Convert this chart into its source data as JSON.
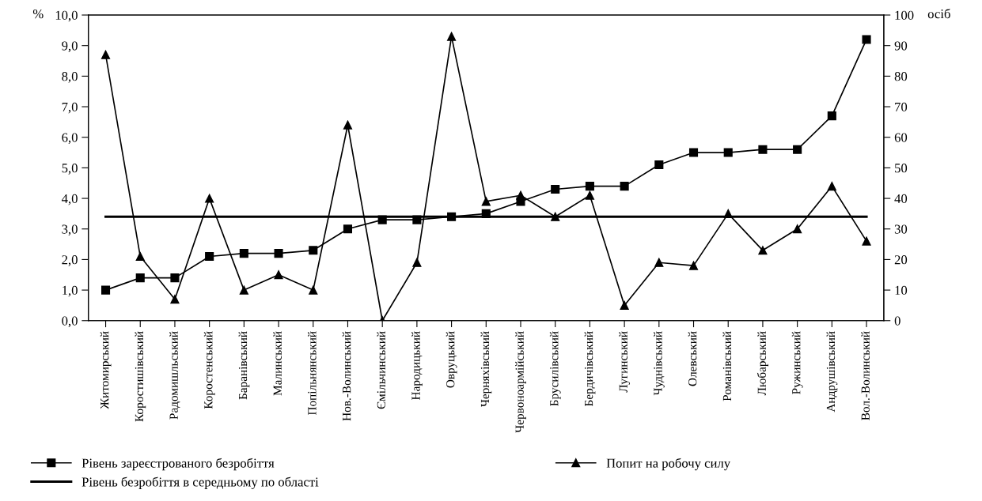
{
  "chart_data": {
    "type": "line",
    "categories": [
      "Житомирський",
      "Коростишівський",
      "Радомишльський",
      "Коростенський",
      "Баранівський",
      "Малинський",
      "Попільнянський",
      "Нов.-Волинський",
      "Ємільчинський",
      "Народицький",
      "Овруцький",
      "Черняхівський",
      "Червоноармійський",
      "Брусилівський",
      "Бердичівський",
      "Лугинський",
      "Чуднівський",
      "Олевський",
      "Романівський",
      "Любарський",
      "Ружинський",
      "Андрушівський",
      "Вол.-Волинський"
    ],
    "series": [
      {
        "name": "Рівень зареєстрованого безробіття",
        "color": "#000000",
        "marker": "square",
        "values": [
          1.0,
          1.4,
          1.4,
          2.1,
          2.2,
          2.2,
          2.3,
          3.0,
          3.3,
          3.3,
          3.4,
          3.5,
          3.9,
          4.3,
          4.4,
          4.4,
          5.1,
          5.5,
          5.5,
          5.6,
          5.6,
          6.7,
          9.2
        ]
      },
      {
        "name": "Рівень безробіття в середньому по області",
        "color": "#000000",
        "marker": "none",
        "values": [
          3.4,
          3.4,
          3.4,
          3.4,
          3.4,
          3.4,
          3.4,
          3.4,
          3.4,
          3.4,
          3.4,
          3.4,
          3.4,
          3.4,
          3.4,
          3.4,
          3.4,
          3.4,
          3.4,
          3.4,
          3.4,
          3.4,
          3.4
        ]
      },
      {
        "name": "Попит на робочу силу",
        "color": "#000000",
        "marker": "triangle",
        "axis": "y2",
        "values": [
          87,
          21,
          7,
          40,
          10,
          15,
          10,
          64,
          0,
          19,
          93,
          39,
          41,
          34,
          41,
          5,
          19,
          18,
          35,
          23,
          30,
          44,
          26
        ]
      }
    ],
    "ylabel": "%",
    "y2label": "осіб",
    "ylim": [
      0,
      10
    ],
    "yticks": [
      {
        "value": 0,
        "label": "0,0"
      },
      {
        "value": 1,
        "label": "1,0"
      },
      {
        "value": 2,
        "label": "2,0"
      },
      {
        "value": 3,
        "label": "3,0"
      },
      {
        "value": 4,
        "label": "4,0"
      },
      {
        "value": 5,
        "label": "5,0"
      },
      {
        "value": 6,
        "label": "6,0"
      },
      {
        "value": 7,
        "label": "7,0"
      },
      {
        "value": 8,
        "label": "8,0"
      },
      {
        "value": 9,
        "label": "9,0"
      },
      {
        "value": 10,
        "label": "10,0"
      }
    ],
    "y2lim": [
      0,
      100
    ],
    "y2ticks": [
      0,
      10,
      20,
      30,
      40,
      50,
      60,
      70,
      80,
      90,
      100
    ],
    "grid": false,
    "legend": "bottom"
  }
}
